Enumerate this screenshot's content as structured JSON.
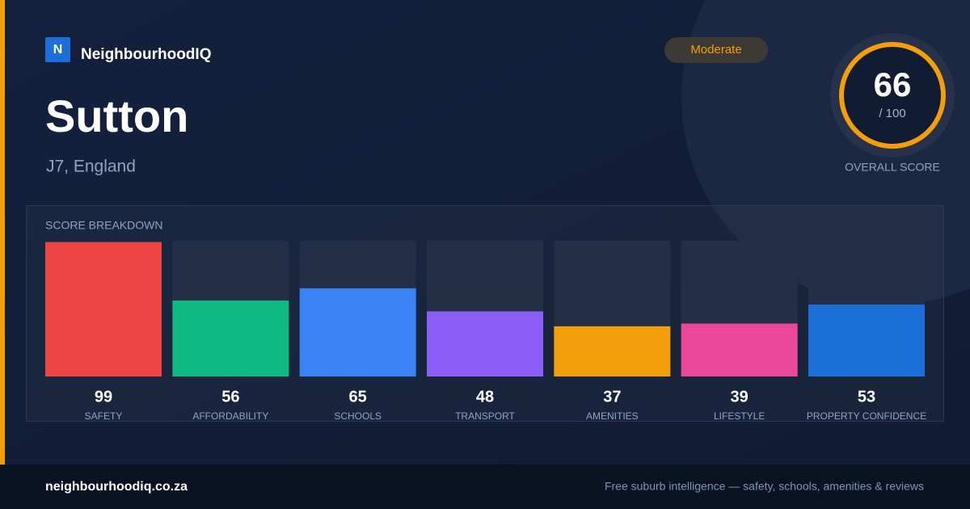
{
  "brand": {
    "logo": "N",
    "name": "NeighbourhoodIQ"
  },
  "badge": "Moderate",
  "title": "Sutton",
  "location": "J7, England",
  "overall": {
    "score": 66,
    "max_label": "/ 100",
    "label": "OVERALL SCORE"
  },
  "chart_data": {
    "type": "bar",
    "title": "SCORE BREAKDOWN",
    "categories": [
      "SAFETY",
      "AFFORDABILITY",
      "SCHOOLS",
      "TRANSPORT",
      "AMENITIES",
      "LIFESTYLE",
      "PROPERTY CONFIDENCE"
    ],
    "values": [
      99,
      56,
      65,
      48,
      37,
      39,
      53
    ],
    "colors": [
      "#ef4444",
      "#10b981",
      "#3b82f6",
      "#8b5cf6",
      "#f59e0b",
      "#ec4899",
      "#1d6fd8"
    ],
    "ylim": [
      0,
      100
    ]
  },
  "footer": {
    "site": "neighbourhoodiq.co.za",
    "tagline": "Free suburb intelligence — safety, schools, amenities & reviews"
  }
}
